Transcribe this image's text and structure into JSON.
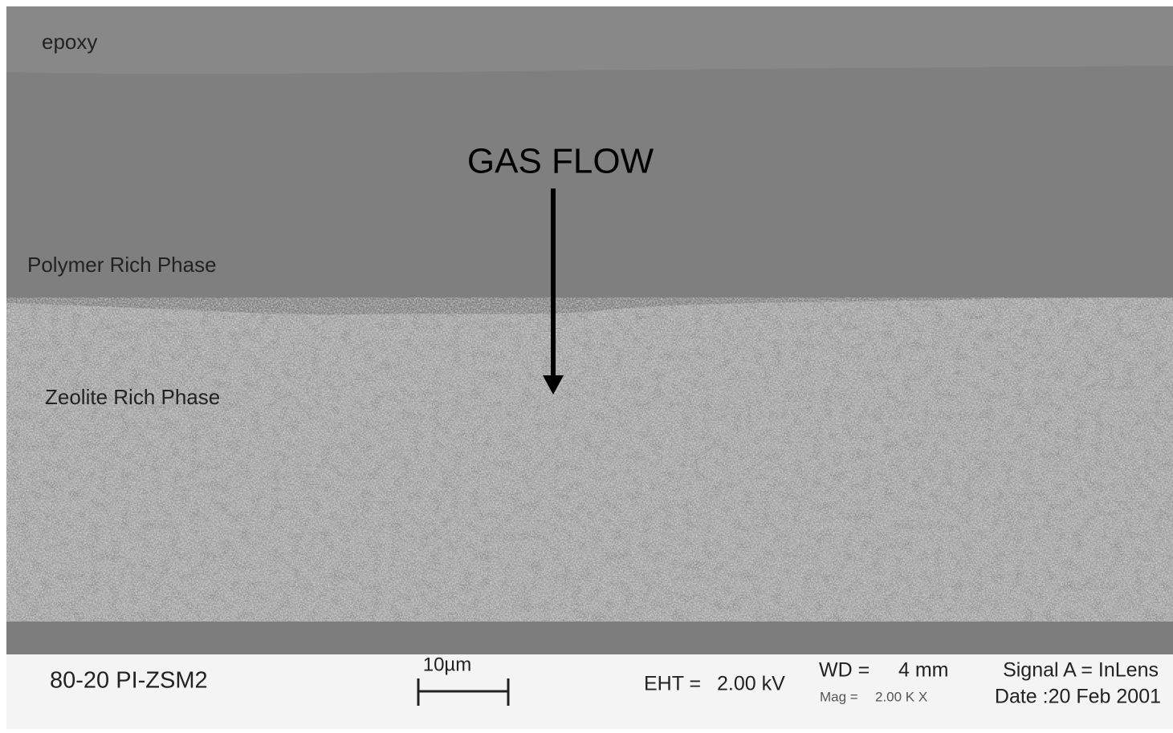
{
  "image": {
    "labels": {
      "epoxy": "epoxy",
      "polymer": "Polymer Rich Phase",
      "zeolite": "Zeolite Rich Phase",
      "gas_flow": "GAS FLOW"
    }
  },
  "info_bar": {
    "sample": "80-20 PI-ZSM2",
    "scale_bar": "10µm",
    "eht_label": "EHT =",
    "eht_value": "2.00 kV",
    "wd_label": "WD =",
    "wd_value": "4 mm",
    "mag_label": "Mag =",
    "mag_value": "2.00 K X",
    "signal": "Signal A = InLens",
    "date": "Date :20 Feb 2001"
  }
}
